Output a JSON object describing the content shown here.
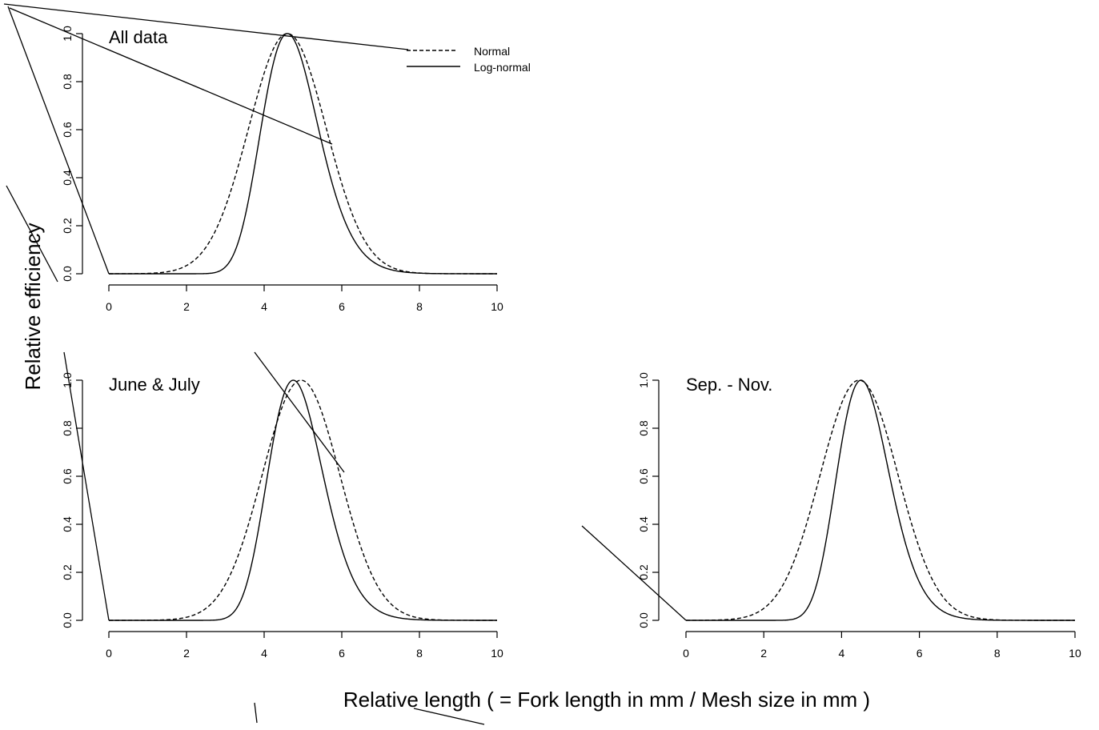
{
  "figure": {
    "ylabel": "Relative efficiency",
    "xlabel": "Relative length ( = Fork length in mm / Mesh size in mm )"
  },
  "legend": {
    "entries": [
      {
        "label": "Normal",
        "style": "dashed"
      },
      {
        "label": "Log-normal",
        "style": "solid"
      }
    ],
    "placement": "top-center"
  },
  "chart_data": [
    {
      "type": "line",
      "title": "All data",
      "xlim": [
        0,
        10
      ],
      "ylim": [
        0,
        1
      ],
      "x_ticks": [
        0,
        2,
        4,
        6,
        8,
        10
      ],
      "x_tick_labels": [
        "0",
        "2",
        "4",
        "6",
        "8",
        "10"
      ],
      "y_ticks": [
        0,
        0.2,
        0.4,
        0.6,
        0.8,
        1
      ],
      "y_tick_labels": [
        "0.0",
        "0.2",
        "0.4",
        "0.6",
        "0.8",
        "1.0"
      ],
      "grid": false,
      "series": [
        {
          "name": "Normal",
          "style": "dashed",
          "peak_x": 4.6,
          "sd": 1.0,
          "x": [
            0,
            1,
            2,
            2.5,
            3,
            3.5,
            4,
            4.3,
            4.6,
            4.9,
            5.2,
            5.6,
            6,
            6.5,
            7,
            7.5,
            8,
            8.5,
            9,
            10
          ],
          "y": [
            0,
            0.005,
            0.034,
            0.09,
            0.28,
            0.55,
            0.84,
            0.96,
            1.0,
            0.96,
            0.84,
            0.61,
            0.38,
            0.16,
            0.06,
            0.015,
            0.004,
            0.001,
            0,
            0
          ]
        },
        {
          "name": "Log-normal",
          "style": "solid",
          "peak_x": 4.6,
          "sigma": 0.16,
          "x": [
            0,
            2.5,
            3,
            3.5,
            4,
            4.3,
            4.6,
            4.9,
            5.2,
            5.6,
            6,
            6.5,
            7,
            7.5,
            8,
            8.5,
            9,
            10
          ],
          "y": [
            0,
            0,
            0.07,
            0.39,
            0.83,
            0.97,
            1.0,
            0.97,
            0.89,
            0.71,
            0.51,
            0.29,
            0.14,
            0.06,
            0.02,
            0.006,
            0.001,
            0
          ]
        }
      ]
    },
    {
      "type": "line",
      "title": "June & July",
      "xlim": [
        0,
        10
      ],
      "ylim": [
        0,
        1
      ],
      "x_ticks": [
        0,
        2,
        4,
        6,
        8,
        10
      ],
      "x_tick_labels": [
        "0",
        "2",
        "4",
        "6",
        "8",
        "10"
      ],
      "y_ticks": [
        0,
        0.2,
        0.4,
        0.6,
        0.8,
        1
      ],
      "y_tick_labels": [
        "0.0",
        "0.2",
        "0.4",
        "0.6",
        "0.8",
        "1.0"
      ],
      "grid": false,
      "series": [
        {
          "name": "Normal",
          "style": "dashed",
          "peak_x": 4.95,
          "sd": 1.0,
          "x": [
            0,
            1,
            2,
            2.5,
            3,
            3.5,
            4,
            4.5,
            4.95,
            5.4,
            6,
            6.5,
            7,
            7.5,
            8,
            9,
            10
          ],
          "y": [
            0,
            0.0,
            0.013,
            0.05,
            0.15,
            0.35,
            0.64,
            0.9,
            1.0,
            0.9,
            0.58,
            0.3,
            0.12,
            0.04,
            0.01,
            0.001,
            0
          ]
        },
        {
          "name": "Log-normal",
          "style": "solid",
          "peak_x": 4.75,
          "sigma": 0.15,
          "x": [
            0,
            2.5,
            3,
            3.5,
            4,
            4.4,
            4.75,
            5.1,
            5.5,
            6,
            6.5,
            7,
            7.5,
            8,
            9,
            10
          ],
          "y": [
            0,
            0,
            0.04,
            0.3,
            0.74,
            0.95,
            1.0,
            0.95,
            0.78,
            0.52,
            0.29,
            0.13,
            0.05,
            0.02,
            0.001,
            0
          ]
        }
      ]
    },
    {
      "type": "line",
      "title": "Sep. - Nov.",
      "xlim": [
        0,
        10
      ],
      "ylim": [
        0,
        1
      ],
      "x_ticks": [
        0,
        2,
        4,
        6,
        8,
        10
      ],
      "x_tick_labels": [
        "0",
        "2",
        "4",
        "6",
        "8",
        "10"
      ],
      "y_ticks": [
        0,
        0.2,
        0.4,
        0.6,
        0.8,
        1
      ],
      "y_tick_labels": [
        "0.0",
        "0.2",
        "0.4",
        "0.6",
        "0.8",
        "1.0"
      ],
      "grid": false,
      "series": [
        {
          "name": "Normal",
          "style": "dashed",
          "peak_x": 4.45,
          "sd": 1.0,
          "x": [
            0,
            1,
            2,
            2.5,
            3,
            3.5,
            4,
            4.45,
            4.9,
            5.5,
            6,
            6.5,
            7,
            7.5,
            8,
            9,
            10
          ],
          "y": [
            0,
            0.003,
            0.05,
            0.15,
            0.35,
            0.64,
            0.9,
            1.0,
            0.9,
            0.58,
            0.3,
            0.12,
            0.04,
            0.01,
            0.003,
            0,
            0
          ]
        },
        {
          "name": "Log-normal",
          "style": "solid",
          "peak_x": 4.5,
          "sigma": 0.15,
          "x": [
            0,
            2.5,
            3,
            3.5,
            4,
            4.5,
            5,
            5.5,
            6,
            6.5,
            7,
            7.5,
            8,
            9,
            10
          ],
          "y": [
            0,
            0,
            0.08,
            0.42,
            0.83,
            1.0,
            0.9,
            0.67,
            0.42,
            0.23,
            0.11,
            0.05,
            0.02,
            0.001,
            0
          ]
        }
      ]
    }
  ]
}
